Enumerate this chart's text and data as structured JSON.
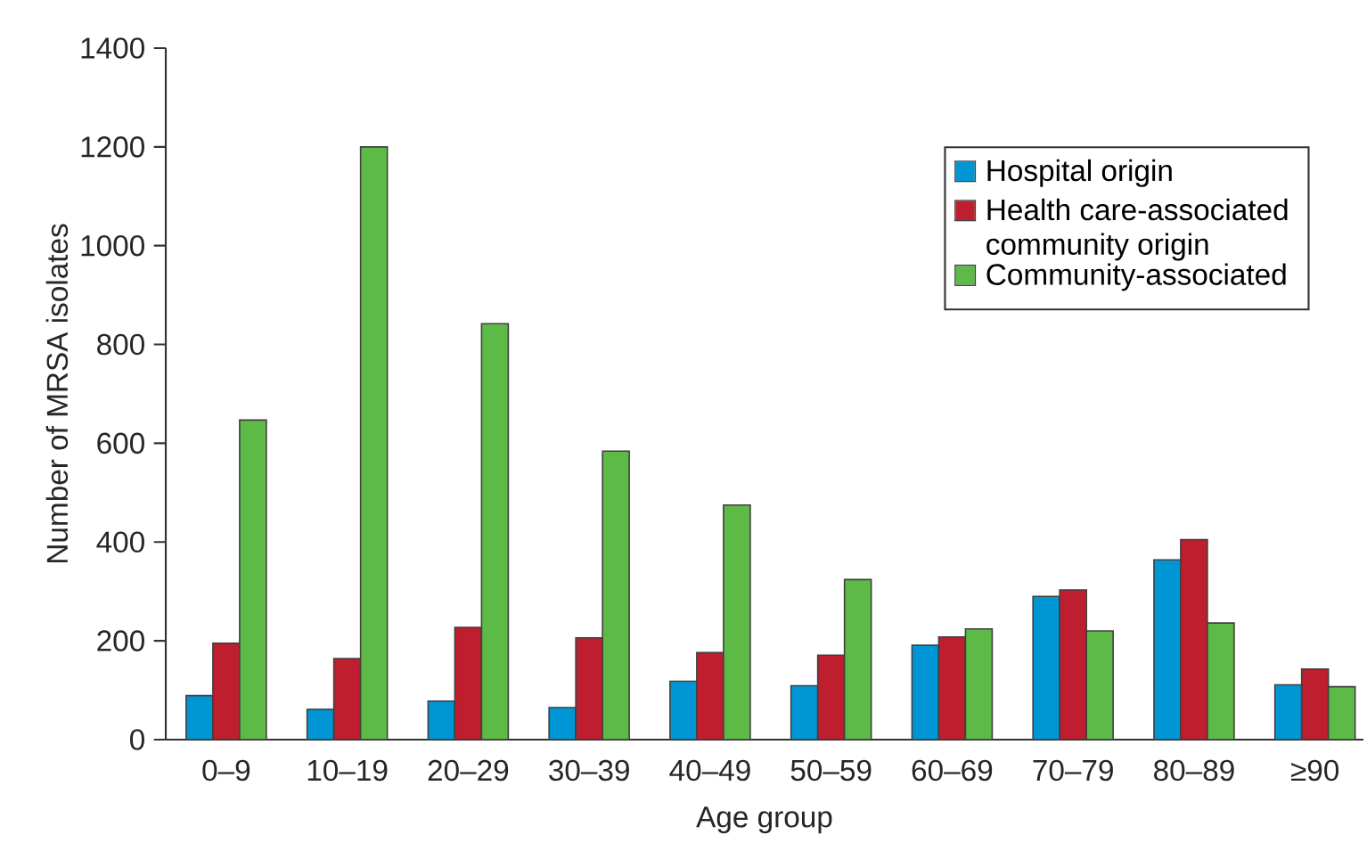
{
  "chart_data": {
    "type": "bar",
    "xlabel": "Age group",
    "ylabel": "Number of MRSA isolates",
    "categories": [
      "0–9",
      "10–19",
      "20–29",
      "30–39",
      "40–49",
      "50–59",
      "60–69",
      "70–79",
      "80–89",
      "≥90"
    ],
    "series": [
      {
        "name": "Hospital origin",
        "color": "#0096d6",
        "values": [
          89,
          61,
          78,
          65,
          118,
          109,
          191,
          290,
          364,
          111
        ]
      },
      {
        "name": "Health care-associated community origin",
        "color": "#be1e2d",
        "values": [
          195,
          164,
          227,
          206,
          176,
          171,
          208,
          303,
          405,
          143
        ]
      },
      {
        "name": "Community-associated",
        "color": "#5dba47",
        "values": [
          647,
          1200,
          842,
          584,
          475,
          324,
          224,
          220,
          236,
          107
        ]
      }
    ],
    "ylim": [
      0,
      1400
    ],
    "yticks": [
      0,
      200,
      400,
      600,
      800,
      1000,
      1200,
      1400
    ],
    "grid": false,
    "legend": "top right"
  }
}
